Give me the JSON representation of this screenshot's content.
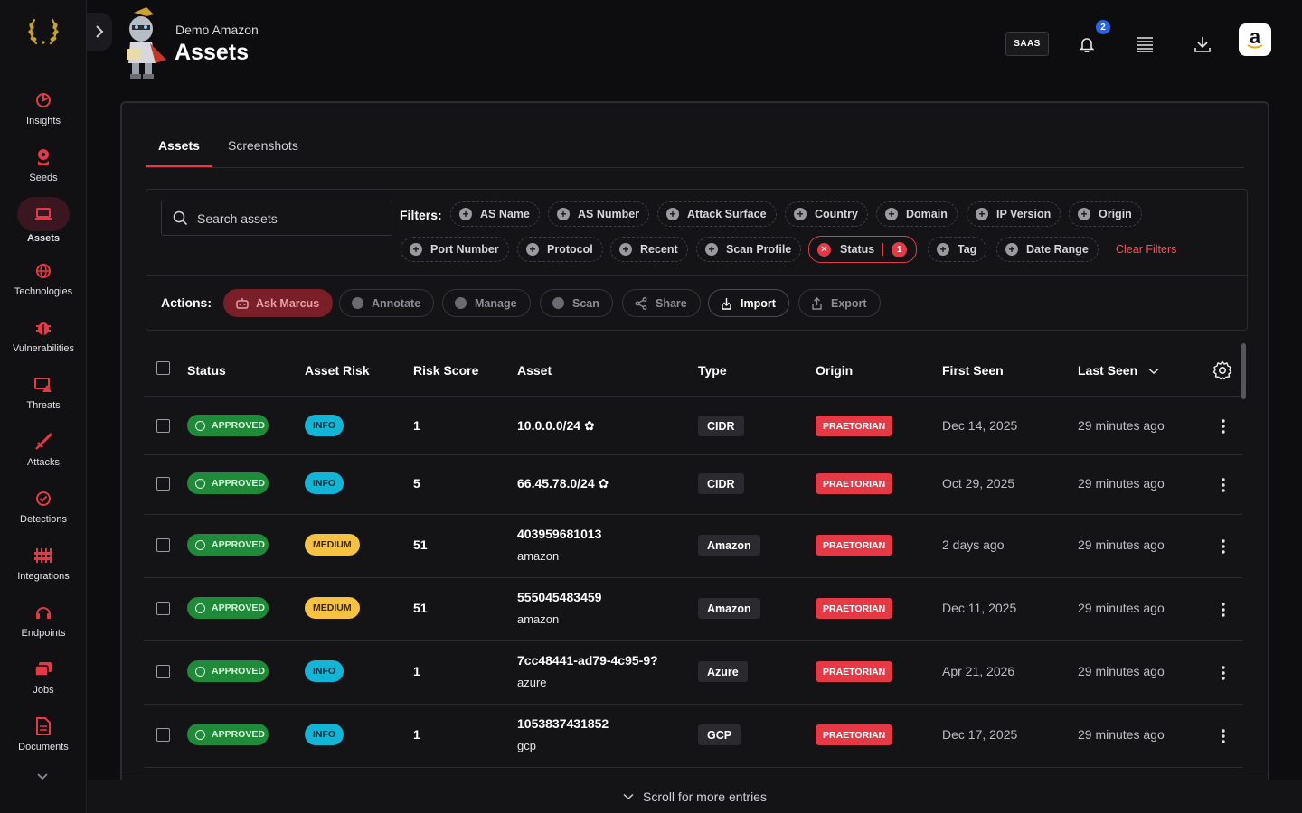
{
  "sidebar": {
    "items": [
      {
        "label": "Insights",
        "icon": "insights-icon"
      },
      {
        "label": "Seeds",
        "icon": "seeds-icon"
      },
      {
        "label": "Assets",
        "icon": "laptop-icon",
        "active": true
      },
      {
        "label": "Technologies",
        "icon": "globe-icon"
      },
      {
        "label": "Vulnerabilities",
        "icon": "bug-icon"
      },
      {
        "label": "Threats",
        "icon": "threat-icon"
      },
      {
        "label": "Attacks",
        "icon": "sword-icon"
      },
      {
        "label": "Detections",
        "icon": "detection-icon"
      },
      {
        "label": "Integrations",
        "icon": "sliders-icon"
      },
      {
        "label": "Endpoints",
        "icon": "headset-icon"
      },
      {
        "label": "Jobs",
        "icon": "jobs-icon"
      },
      {
        "label": "Documents",
        "icon": "document-icon"
      }
    ]
  },
  "header": {
    "org": "Demo Amazon",
    "title": "Assets",
    "saas_label": "SAAS",
    "notification_count": "2",
    "amazon_logo": "a"
  },
  "tabs": [
    "Assets",
    "Screenshots"
  ],
  "search": {
    "placeholder": "Search assets"
  },
  "filters": {
    "label": "Filters:",
    "chips": [
      "AS Name",
      "AS Number",
      "Attack Surface",
      "Country",
      "Domain",
      "IP Version",
      "Origin",
      "Port Number",
      "Protocol",
      "Recent",
      "Scan Profile",
      "Tag",
      "Date Range"
    ],
    "status_chip": {
      "label": "Status",
      "count": "1"
    },
    "clear": "Clear Filters"
  },
  "actions": {
    "label": "Actions:",
    "items": [
      "Ask Marcus",
      "Annotate",
      "Manage",
      "Scan",
      "Share",
      "Import",
      "Export"
    ]
  },
  "table": {
    "columns": [
      "Status",
      "Asset Risk",
      "Risk Score",
      "Asset",
      "Type",
      "Origin",
      "First Seen",
      "Last Seen"
    ],
    "rows": [
      {
        "status": "APPROVED",
        "risk": "INFO",
        "score": "1",
        "asset": "10.0.0.0/24",
        "sub": "",
        "type": "CIDR",
        "origin": "PRAETORIAN",
        "first_seen": "Dec 14, 2025",
        "last_seen": "29 minutes ago"
      },
      {
        "status": "APPROVED",
        "risk": "INFO",
        "score": "5",
        "asset": "66.45.78.0/24",
        "sub": "",
        "type": "CIDR",
        "origin": "PRAETORIAN",
        "first_seen": "Oct 29, 2025",
        "last_seen": "29 minutes ago"
      },
      {
        "status": "APPROVED",
        "risk": "MEDIUM",
        "score": "51",
        "asset": "403959681013",
        "sub": "amazon",
        "type": "Amazon",
        "origin": "PRAETORIAN",
        "first_seen": "2 days ago",
        "last_seen": "29 minutes ago"
      },
      {
        "status": "APPROVED",
        "risk": "MEDIUM",
        "score": "51",
        "asset": "555045483459",
        "sub": "amazon",
        "type": "Amazon",
        "origin": "PRAETORIAN",
        "first_seen": "Dec 11, 2025",
        "last_seen": "29 minutes ago"
      },
      {
        "status": "APPROVED",
        "risk": "INFO",
        "score": "1",
        "asset": "7cc48441-ad79-4c95-9?",
        "sub": "azure",
        "type": "Azure",
        "origin": "PRAETORIAN",
        "first_seen": "Apr 21, 2026",
        "last_seen": "29 minutes ago"
      },
      {
        "status": "APPROVED",
        "risk": "INFO",
        "score": "1",
        "asset": "1053837431852",
        "sub": "gcp",
        "type": "GCP",
        "origin": "PRAETORIAN",
        "first_seen": "Dec 17, 2025",
        "last_seen": "29 minutes ago"
      }
    ]
  },
  "footer": {
    "text": "Scroll for more entries"
  },
  "colors": {
    "accent": "#e63946",
    "approved": "#1f8a3a",
    "info": "#12b5d6",
    "medium": "#f5c242",
    "badge": "#2563eb"
  }
}
